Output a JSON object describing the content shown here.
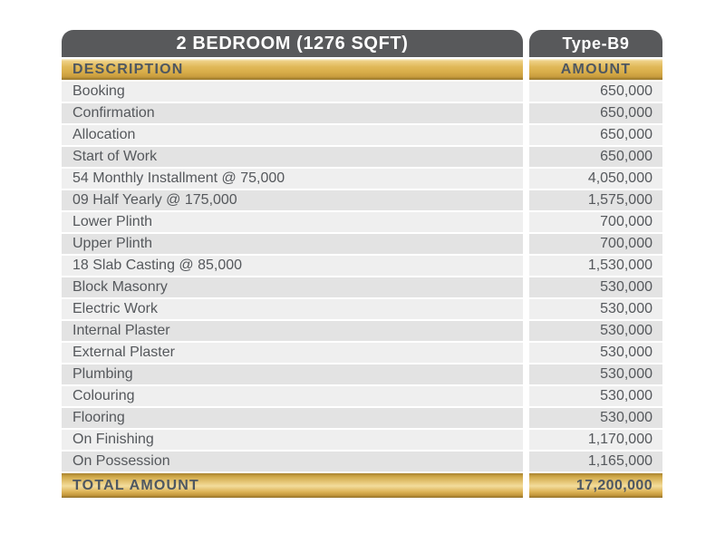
{
  "header": {
    "title": "2 BEDROOM (1276 SQFT)",
    "type_label": "Type-B9"
  },
  "columns": {
    "description": "DESCRIPTION",
    "amount": "AMOUNT"
  },
  "rows": [
    {
      "label": "Booking",
      "amount": "650,000"
    },
    {
      "label": "Confirmation",
      "amount": "650,000"
    },
    {
      "label": "Allocation",
      "amount": "650,000"
    },
    {
      "label": "Start of Work",
      "amount": "650,000"
    },
    {
      "label": "54 Monthly Installment @ 75,000",
      "amount": "4,050,000"
    },
    {
      "label": "09 Half Yearly @ 175,000",
      "amount": "1,575,000"
    },
    {
      "label": "Lower Plinth",
      "amount": "700,000"
    },
    {
      "label": "Upper Plinth",
      "amount": "700,000"
    },
    {
      "label": "18 Slab Casting @ 85,000",
      "amount": "1,530,000"
    },
    {
      "label": "Block Masonry",
      "amount": "530,000"
    },
    {
      "label": "Electric Work",
      "amount": "530,000"
    },
    {
      "label": "Internal Plaster",
      "amount": "530,000"
    },
    {
      "label": "External Plaster",
      "amount": "530,000"
    },
    {
      "label": "Plumbing",
      "amount": "530,000"
    },
    {
      "label": "Colouring",
      "amount": "530,000"
    },
    {
      "label": "Flooring",
      "amount": "530,000"
    },
    {
      "label": "On Finishing",
      "amount": "1,170,000"
    },
    {
      "label": "On Possession",
      "amount": "1,165,000"
    }
  ],
  "total": {
    "label": "TOTAL AMOUNT",
    "amount": "17,200,000"
  },
  "colors": {
    "header_gray": "#58595B",
    "gold": "#DDB452",
    "gold_light": "#F2DC9C",
    "gold_dark": "#93732A",
    "row_light": "#EFEFEF",
    "row_dark": "#E3E3E3",
    "text_dark": "#4E5761",
    "row_text": "#55585C"
  }
}
